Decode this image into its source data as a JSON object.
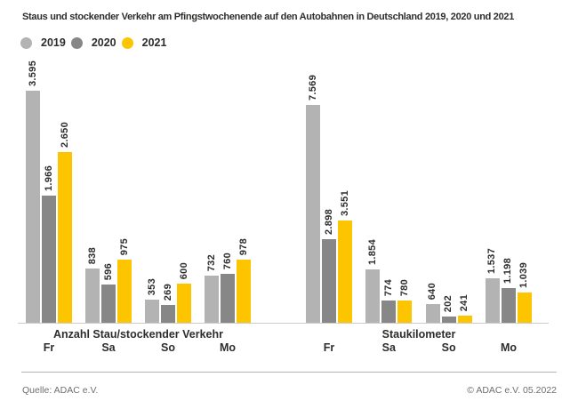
{
  "title": "Staus und stockender Verkehr am Pfingstwochenende auf den Autobahnen in Deutschland 2019, 2020 und 2021",
  "legend": {
    "position": "top-left",
    "items": [
      {
        "label": "2019",
        "color": "#b3b3b3"
      },
      {
        "label": "2020",
        "color": "#878787"
      },
      {
        "label": "2021",
        "color": "#fdc500"
      }
    ]
  },
  "chart_data": [
    {
      "type": "bar",
      "title": "Anzahl Stau/stockender Verkehr",
      "categories": [
        "Fr",
        "Sa",
        "So",
        "Mo"
      ],
      "series": [
        {
          "name": "2019",
          "color": "#b3b3b3",
          "values": [
            3595,
            838,
            353,
            732
          ],
          "labels": [
            "3.595",
            "838",
            "353",
            "732"
          ]
        },
        {
          "name": "2020",
          "color": "#878787",
          "values": [
            1966,
            596,
            269,
            760
          ],
          "labels": [
            "1.966",
            "596",
            "269",
            "760"
          ]
        },
        {
          "name": "2021",
          "color": "#fdc500",
          "values": [
            2650,
            975,
            600,
            978
          ],
          "labels": [
            "2.650",
            "975",
            "600",
            "978"
          ]
        }
      ],
      "value_labels_rotated": true,
      "grid": false,
      "ylim": [
        0,
        3595
      ]
    },
    {
      "type": "bar",
      "title": "Staukilometer",
      "categories": [
        "Fr",
        "Sa",
        "So",
        "Mo"
      ],
      "series": [
        {
          "name": "2019",
          "color": "#b3b3b3",
          "values": [
            7569,
            1854,
            640,
            1537
          ],
          "labels": [
            "7.569",
            "1.854",
            "640",
            "1.537"
          ]
        },
        {
          "name": "2020",
          "color": "#878787",
          "values": [
            2898,
            774,
            202,
            1198
          ],
          "labels": [
            "2.898",
            "774",
            "202",
            "1.198"
          ]
        },
        {
          "name": "2021",
          "color": "#fdc500",
          "values": [
            3551,
            780,
            241,
            1039
          ],
          "labels": [
            "3.551",
            "780",
            "241",
            "1.039"
          ]
        }
      ],
      "value_labels_rotated": true,
      "grid": false,
      "ylim": [
        0,
        7569
      ]
    }
  ],
  "footer": {
    "source": "Quelle: ADAC e.V.",
    "copyright": "© ADAC e.V. 05.2022"
  }
}
